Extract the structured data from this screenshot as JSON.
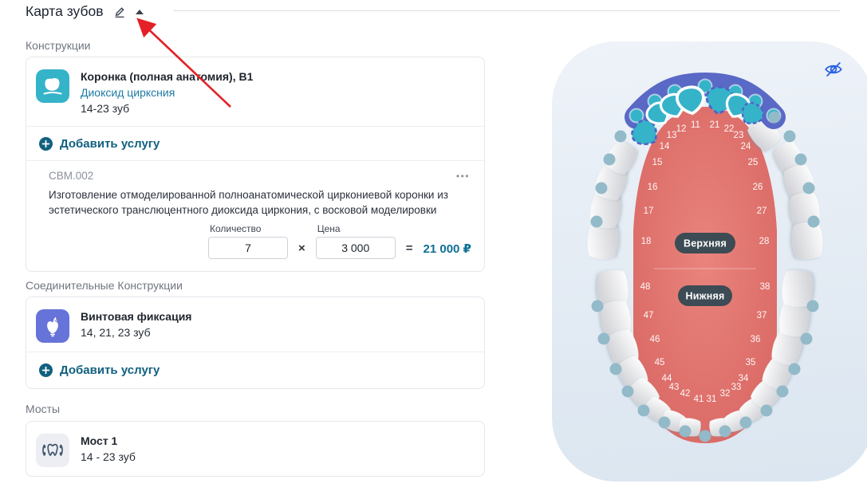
{
  "header": {
    "title": "Карта зубов"
  },
  "constructions_label": "Конструкции",
  "crown_card": {
    "title": "Коронка (полная анатомия), B1",
    "material_link": "Диоксид цирксния",
    "teeth_range": "14-23 зуб",
    "add_service": "Добавить услугу",
    "service": {
      "code": "СВМ.002",
      "menu_icon": "•••",
      "description": "Изготовление отмоделированной полноанатомической циркониевой коронки из эстетического транслюцентного диоксида циркония, с восковой моделировки",
      "quantity_label": "Количество",
      "quantity": "7",
      "multiply": "×",
      "price_label": "Цена",
      "price": "3 000",
      "equals": "=",
      "total": "21 000 ₽"
    }
  },
  "connectors_label": "Соединительные Конструкции",
  "connector_card": {
    "title": "Винтовая фиксация",
    "teeth": "14, 21, 23 зуб",
    "add_service": "Добавить услугу"
  },
  "bridges_label": "Мосты",
  "bridge_card": {
    "title": "Мост 1",
    "teeth": "14 - 23 зуб"
  },
  "tooth_map": {
    "upper_jaw_label": "Верхняя",
    "lower_jaw_label": "Нижняя",
    "upper_teeth": [
      "18",
      "17",
      "16",
      "15",
      "14",
      "13",
      "12",
      "11",
      "21",
      "22",
      "23",
      "24",
      "25",
      "26",
      "27",
      "28"
    ],
    "lower_teeth": [
      "48",
      "47",
      "46",
      "45",
      "44",
      "43",
      "42",
      "41",
      "31",
      "32",
      "33",
      "34",
      "35",
      "36",
      "37",
      "38"
    ],
    "crowned_teeth": [
      "14",
      "13",
      "12",
      "11",
      "21",
      "22",
      "23"
    ],
    "screw_fixed_teeth": [
      "14",
      "21",
      "23"
    ],
    "colors": {
      "crown_teal": "#35b3c9",
      "bridge_indigo": "#5a68c6",
      "screw_dash": "#5462c8",
      "gum_red": "#dd6b66",
      "jaw_button": "#3c4b54",
      "dot": "#93bac9",
      "accent": "#11607f",
      "total_teal": "#0f6f96",
      "eye_blue": "#2b61e3"
    }
  }
}
